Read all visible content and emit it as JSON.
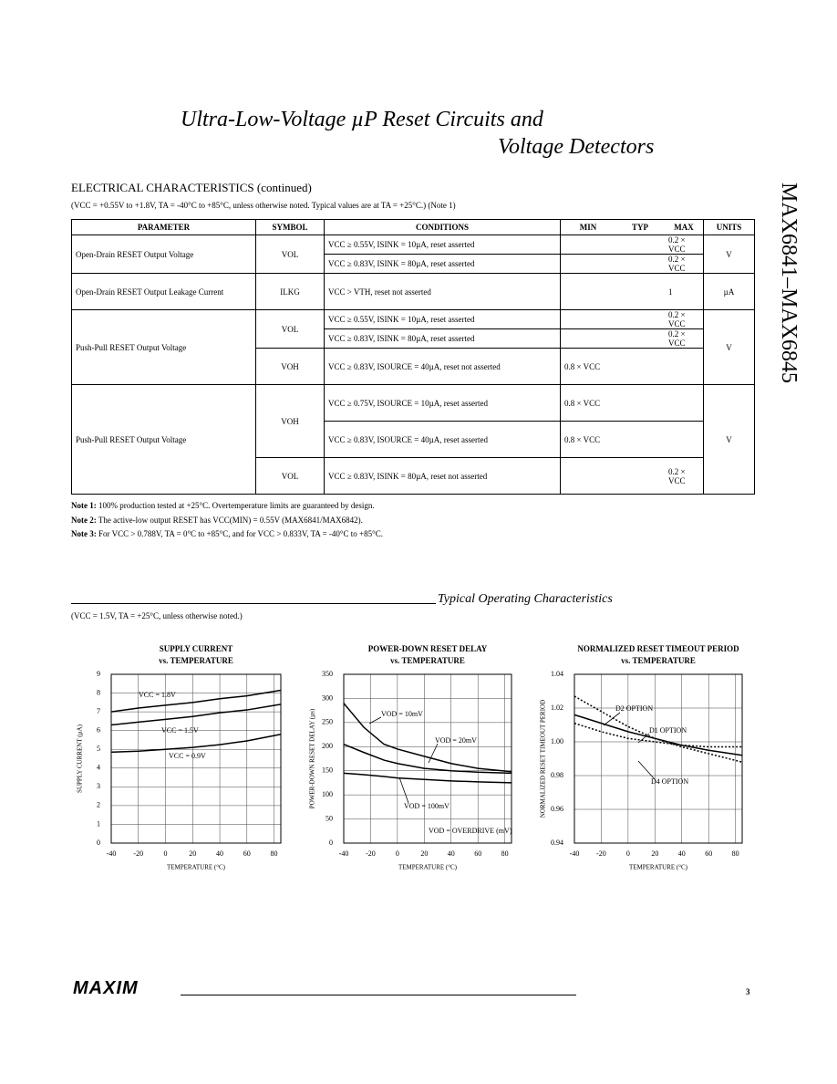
{
  "header": {
    "title_line1": "Ultra-Low-Voltage µP Reset Circuits and",
    "title_line2": "Voltage Detectors",
    "side_title": "MAX6841–MAX6845"
  },
  "section": {
    "title": "ELECTRICAL CHARACTERISTICS (continued)",
    "conditions": "(VCC = +0.55V to +1.8V, TA = -40°C to +85°C, unless otherwise noted. Typical values are at TA = +25°C.) (Note 1)"
  },
  "table": {
    "header": [
      "PARAMETER",
      "SYMBOL",
      "CONDITIONS",
      "MIN",
      "TYP",
      "MAX",
      "UNITS"
    ],
    "groups": [
      {
        "parameter": "Open-Drain RESET Output Voltage",
        "units": "V",
        "symbols": [
          {
            "symbol": "VOL",
            "lines": [
              {
                "condition": "VCC ≥ 0.55V, ISINK = 10µA, reset asserted",
                "max": "0.2 × VCC"
              },
              {
                "condition": "VCC ≥ 0.83V, ISINK = 80µA, reset asserted",
                "max": "0.2 × VCC"
              }
            ]
          }
        ]
      },
      {
        "parameter": "Open-Drain RESET Output Leakage Current",
        "units": "µA",
        "symbols": [
          {
            "symbol": "ILKG",
            "lines": [
              {
                "condition": "VCC > VTH, reset not asserted",
                "max": "1"
              }
            ]
          }
        ]
      },
      {
        "parameter": "Push-Pull RESET Output Voltage",
        "units": "V",
        "symbols": [
          {
            "symbol": "VOL",
            "lines": [
              {
                "condition": "VCC ≥ 0.55V, ISINK = 10µA, reset asserted",
                "max": "0.2 × VCC"
              },
              {
                "condition": "VCC ≥ 0.83V, ISINK = 80µA, reset asserted",
                "max": "0.2 × VCC"
              }
            ]
          },
          {
            "symbol": "VOH",
            "lines": [
              {
                "condition": "VCC ≥ 0.83V, ISOURCE = 40µA, reset not asserted",
                "min": "0.8 × VCC"
              }
            ]
          }
        ]
      },
      {
        "parameter": "Push-Pull RESET Output Voltage",
        "units": "V",
        "symbols": [
          {
            "symbol": "VOH",
            "lines": [
              {
                "condition": "VCC ≥ 0.75V, ISOURCE = 10µA, reset asserted",
                "min": "0.8 × VCC"
              },
              {
                "condition": "VCC ≥ 0.83V, ISOURCE = 40µA, reset asserted",
                "min": "0.8 × VCC"
              }
            ]
          },
          {
            "symbol": "VOL",
            "lines": [
              {
                "condition": "VCC ≥ 0.83V, ISINK = 80µA, reset not asserted",
                "max": "0.2 × VCC"
              }
            ]
          }
        ]
      }
    ]
  },
  "notes": [
    {
      "label": "Note 1:",
      "text": "100% production tested at +25°C. Overtemperature limits are guaranteed by design."
    },
    {
      "label": "Note 2:",
      "text": "The active-low output RESET has VCC(MIN) = 0.55V (MAX6841/MAX6842)."
    },
    {
      "label": "Note 3:",
      "text": "For VCC > 0.788V, TA = 0°C to +85°C, and for VCC > 0.833V, TA = -40°C to +85°C."
    }
  ],
  "toc": {
    "title": "Typical Operating Characteristics",
    "conditions": "(VCC = 1.5V, TA = +25°C, unless otherwise noted.)"
  },
  "chart_data": [
    {
      "type": "line",
      "title": "SUPPLY CURRENT",
      "subtitle": "vs. TEMPERATURE",
      "xlabel": "TEMPERATURE (°C)",
      "ylabel": "SUPPLY CURRENT (µA)",
      "grid": true,
      "xlim": [
        -40,
        85
      ],
      "xticks": [
        -40,
        -20,
        0,
        20,
        40,
        60,
        80
      ],
      "ylim": [
        0,
        9
      ],
      "yticks": [
        0,
        1,
        2,
        3,
        4,
        5,
        6,
        7,
        8,
        9
      ],
      "x": [
        -40,
        -20,
        0,
        20,
        40,
        60,
        85
      ],
      "series": [
        {
          "color": "#000000",
          "style": "solid",
          "values": [
            7.0,
            7.2,
            7.35,
            7.5,
            7.7,
            7.85,
            8.15
          ]
        },
        {
          "color": "#000000",
          "style": "solid",
          "values": [
            6.3,
            6.45,
            6.6,
            6.75,
            6.95,
            7.1,
            7.4
          ]
        },
        {
          "color": "#000000",
          "style": "solid",
          "values": [
            4.85,
            4.9,
            5.0,
            5.1,
            5.25,
            5.45,
            5.8
          ]
        }
      ],
      "annotations": [
        "VCC = 1.8V",
        "VCC = 1.5V",
        "VCC = 0.9V"
      ]
    },
    {
      "type": "line",
      "title": "POWER-DOWN RESET DELAY",
      "subtitle": "vs. TEMPERATURE",
      "xlabel": "TEMPERATURE (°C)",
      "ylabel": "POWER-DOWN RESET DELAY (µs)",
      "grid": true,
      "xlim": [
        -40,
        85
      ],
      "xticks": [
        -40,
        -20,
        0,
        20,
        40,
        60,
        80
      ],
      "ylim": [
        0,
        350
      ],
      "yticks": [
        0,
        50,
        100,
        150,
        200,
        250,
        300,
        350
      ],
      "x": [
        -40,
        -25,
        -10,
        0,
        20,
        40,
        60,
        85
      ],
      "series": [
        {
          "color": "#000000",
          "style": "solid",
          "values": [
            290,
            240,
            205,
            195,
            180,
            165,
            155,
            148
          ]
        },
        {
          "color": "#000000",
          "style": "solid",
          "values": [
            205,
            188,
            172,
            165,
            155,
            150,
            147,
            145
          ]
        },
        {
          "color": "#000000",
          "style": "solid",
          "values": [
            145,
            142,
            138,
            135,
            132,
            129,
            127,
            125
          ]
        }
      ],
      "annotations": [
        "VOD = 10mV",
        "VOD = 20mV",
        "VOD = 100mV",
        "VOD = OVERDRIVE (mV)"
      ]
    },
    {
      "type": "line",
      "title": "NORMALIZED RESET TIMEOUT PERIOD",
      "subtitle": "vs. TEMPERATURE",
      "xlabel": "TEMPERATURE (°C)",
      "ylabel": "NORMALIZED RESET TIMEOUT PERIOD",
      "grid": true,
      "xlim": [
        -40,
        85
      ],
      "xticks": [
        -40,
        -20,
        0,
        20,
        40,
        60,
        80
      ],
      "ylim": [
        0.94,
        1.04
      ],
      "yticks": [
        0.94,
        0.96,
        0.98,
        {
          "value": 1,
          "label": "1.00"
        },
        1.02,
        1.04
      ],
      "x": [
        -40,
        -20,
        0,
        20,
        40,
        60,
        85
      ],
      "series": [
        {
          "name": "D2 OPTION",
          "color": "#000000",
          "style": "dotted",
          "values": [
            1.027,
            1.018,
            1.009,
            1.002,
            0.997,
            0.993,
            0.988
          ]
        },
        {
          "name": "D1 OPTION",
          "color": "#000000",
          "style": "solid",
          "values": [
            1.016,
            1.011,
            1.006,
            1.002,
            0.998,
            0.995,
            0.992
          ]
        },
        {
          "name": "D4 OPTION",
          "color": "#000000",
          "style": "dotted",
          "values": [
            1.011,
            1.006,
            1.002,
            1.0,
            0.998,
            0.997,
            0.997
          ]
        }
      ]
    }
  ],
  "footer": {
    "logo": "MAXIM",
    "page": "3"
  }
}
